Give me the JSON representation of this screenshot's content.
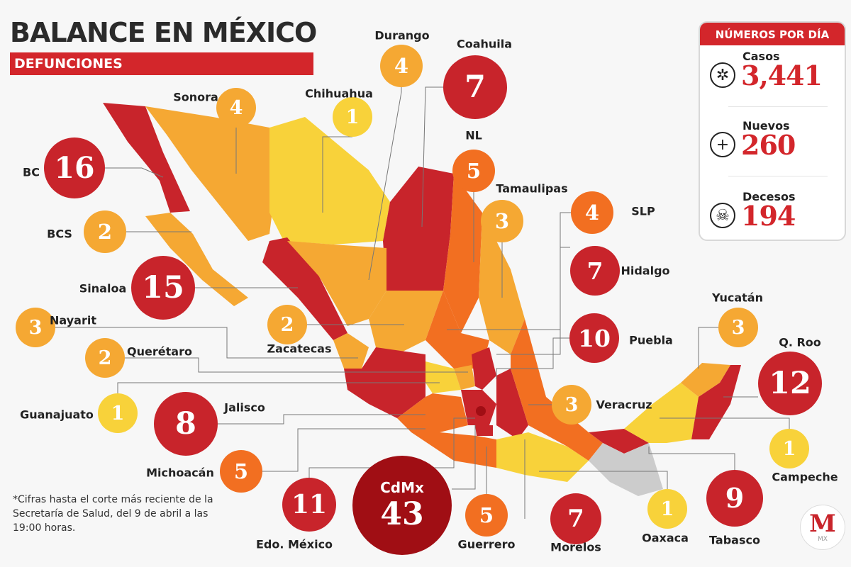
{
  "header": {
    "title_light": "BALANCE EN ",
    "title_bold": "MÉXICO",
    "subtitle": "DEFUNCIONES"
  },
  "colors": {
    "red": "#c8242b",
    "dark_red": "#a00e14",
    "orange": "#f26f21",
    "light_orange": "#f5a833",
    "yellow": "#f8d23a",
    "no_data": "#cccccc"
  },
  "panel": {
    "title": "NÚMEROS POR DÍA",
    "stats": [
      {
        "label": "Casos",
        "value": "3,441",
        "icon": "virus-icon"
      },
      {
        "label": "Nuevos",
        "value": "260",
        "icon": "plus-circle-icon"
      },
      {
        "label": "Decesos",
        "value": "194",
        "icon": "skull-icon"
      }
    ]
  },
  "states": [
    {
      "name": "Durango",
      "value": "4",
      "color": "light_orange"
    },
    {
      "name": "Coahuila",
      "value": "7",
      "color": "red"
    },
    {
      "name": "Chihuahua",
      "value": "1",
      "color": "yellow"
    },
    {
      "name": "Sonora",
      "value": "4",
      "color": "light_orange"
    },
    {
      "name": "BC",
      "value": "16",
      "color": "red"
    },
    {
      "name": "NL",
      "value": "5",
      "color": "orange"
    },
    {
      "name": "Tamaulipas",
      "value": "3",
      "color": "light_orange"
    },
    {
      "name": "SLP",
      "value": "4",
      "color": "orange"
    },
    {
      "name": "BCS",
      "value": "2",
      "color": "light_orange"
    },
    {
      "name": "Hidalgo",
      "value": "7",
      "color": "red"
    },
    {
      "name": "Sinaloa",
      "value": "15",
      "color": "red"
    },
    {
      "name": "Nayarit",
      "value": "3",
      "color": "light_orange"
    },
    {
      "name": "Zacatecas",
      "value": "2",
      "color": "light_orange"
    },
    {
      "name": "Puebla",
      "value": "10",
      "color": "red"
    },
    {
      "name": "Yucatán",
      "value": "3",
      "color": "light_orange"
    },
    {
      "name": "Q. Roo",
      "value": "12",
      "color": "red"
    },
    {
      "name": "Querétaro",
      "value": "2",
      "color": "light_orange"
    },
    {
      "name": "Veracruz",
      "value": "3",
      "color": "light_orange"
    },
    {
      "name": "Guanajuato",
      "value": "1",
      "color": "yellow"
    },
    {
      "name": "Jalisco",
      "value": "8",
      "color": "red"
    },
    {
      "name": "Campeche",
      "value": "1",
      "color": "yellow"
    },
    {
      "name": "Michoacán",
      "value": "5",
      "color": "orange"
    },
    {
      "name": "CdMx",
      "value": "43",
      "color": "dark_red"
    },
    {
      "name": "Edo. México",
      "value": "11",
      "color": "red"
    },
    {
      "name": "Guerrero",
      "value": "5",
      "color": "orange"
    },
    {
      "name": "Morelos",
      "value": "7",
      "color": "red"
    },
    {
      "name": "Oaxaca",
      "value": "1",
      "color": "yellow"
    },
    {
      "name": "Tabasco",
      "value": "9",
      "color": "red"
    }
  ],
  "footnote": "*Cifras hasta el corte más reciente de la Secretaría de Salud, del 9 de abril a las 19:00 horas.",
  "logo": {
    "letter": "M",
    "text": "MX"
  }
}
